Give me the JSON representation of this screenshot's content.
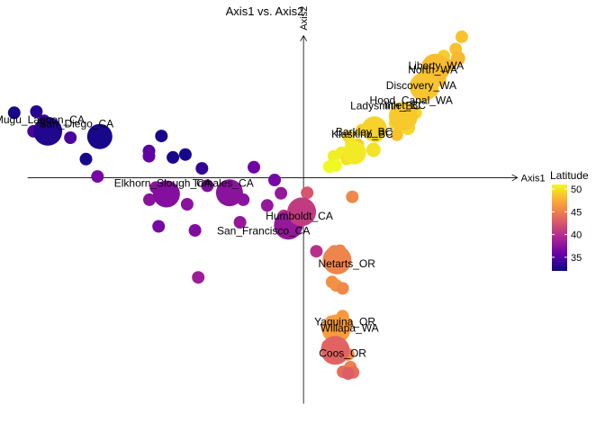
{
  "chart_data": {
    "type": "scatter",
    "title": "Axis1 vs. Axis2",
    "xlabel": "Axis1",
    "ylabel": "Axis2",
    "xlim": [
      -6.6,
      4.95
    ],
    "ylim": [
      -4.0,
      2.6
    ],
    "grid": false,
    "color_scale": {
      "title": "Latitude",
      "range": [
        32,
        51
      ],
      "ticks": [
        35,
        40,
        45,
        50
      ],
      "stops": [
        "#0d0887",
        "#6a00a8",
        "#b12a90",
        "#e16462",
        "#fca636",
        "#f0f921"
      ]
    },
    "points": [
      {
        "x": 3.44,
        "y": 2.43,
        "lat": 48.5,
        "r": 7
      },
      {
        "x": 3.31,
        "y": 2.22,
        "lat": 48.5,
        "r": 7
      },
      {
        "x": 3.36,
        "y": 2.06,
        "lat": 48.0,
        "r": 8
      },
      {
        "x": 3.05,
        "y": 2.1,
        "lat": 49.0,
        "r": 7
      },
      {
        "x": 3.15,
        "y": 1.94,
        "lat": 48.0,
        "r": 7
      },
      {
        "x": 2.97,
        "y": 1.68,
        "lat": 48.5,
        "r": 7
      },
      {
        "x": 2.78,
        "y": 1.51,
        "lat": 48.5,
        "r": 8
      },
      {
        "x": 2.44,
        "y": 1.12,
        "lat": 49.5,
        "r": 7
      },
      {
        "x": 2.27,
        "y": 0.86,
        "lat": 49.5,
        "r": 8
      },
      {
        "x": 2.1,
        "y": 0.89,
        "lat": 49.0,
        "r": 7
      },
      {
        "x": 1.99,
        "y": 0.94,
        "lat": 49.5,
        "r": 7
      },
      {
        "x": 2.03,
        "y": 0.74,
        "lat": 48.5,
        "r": 7
      },
      {
        "x": 1.66,
        "y": 0.87,
        "lat": 50.0,
        "r": 7
      },
      {
        "x": 1.58,
        "y": 0.71,
        "lat": 50.5,
        "r": 7
      },
      {
        "x": 1.27,
        "y": 0.82,
        "lat": 49.0,
        "r": 7
      },
      {
        "x": 1.52,
        "y": 0.48,
        "lat": 50.0,
        "r": 8
      },
      {
        "x": 1.18,
        "y": 0.57,
        "lat": 49.0,
        "r": 7
      },
      {
        "x": 0.98,
        "y": 0.71,
        "lat": 49.5,
        "r": 7
      },
      {
        "x": 1.04,
        "y": 0.57,
        "lat": 50.0,
        "r": 7
      },
      {
        "x": 0.83,
        "y": 0.43,
        "lat": 50.5,
        "r": 7
      },
      {
        "x": 0.66,
        "y": 0.37,
        "lat": 50.5,
        "r": 7
      },
      {
        "x": 0.94,
        "y": 0.32,
        "lat": 50.0,
        "r": 7
      },
      {
        "x": 0.7,
        "y": 0.21,
        "lat": 51.0,
        "r": 7
      },
      {
        "x": 0.56,
        "y": 0.19,
        "lat": 51.0,
        "r": 7
      },
      {
        "x": 2.87,
        "y": 1.89,
        "lat": 48.2,
        "r": 16
      },
      {
        "x": 2.62,
        "y": 1.57,
        "lat": 48.6,
        "r": 16
      },
      {
        "x": 2.17,
        "y": 1.06,
        "lat": 48.8,
        "r": 16
      },
      {
        "x": 1.54,
        "y": 0.84,
        "lat": 49.2,
        "r": 14
      },
      {
        "x": 1.11,
        "y": 0.43,
        "lat": 50.3,
        "r": 13
      },
      {
        "x": -6.29,
        "y": 1.12,
        "lat": 32.5,
        "r": 7
      },
      {
        "x": -5.81,
        "y": 1.14,
        "lat": 33.0,
        "r": 7
      },
      {
        "x": -5.64,
        "y": 0.98,
        "lat": 34.0,
        "r": 7
      },
      {
        "x": -5.47,
        "y": 0.87,
        "lat": 34.5,
        "r": 7
      },
      {
        "x": -5.87,
        "y": 0.8,
        "lat": 34.5,
        "r": 7
      },
      {
        "x": -5.07,
        "y": 0.69,
        "lat": 34.5,
        "r": 7
      },
      {
        "x": -4.37,
        "y": 0.69,
        "lat": 32.5,
        "r": 7
      },
      {
        "x": -4.73,
        "y": 0.32,
        "lat": 32.5,
        "r": 7
      },
      {
        "x": -3.09,
        "y": 0.72,
        "lat": 32.5,
        "r": 7
      },
      {
        "x": -3.36,
        "y": 0.46,
        "lat": 35.0,
        "r": 7
      },
      {
        "x": -3.36,
        "y": 0.37,
        "lat": 35.5,
        "r": 7
      },
      {
        "x": -2.84,
        "y": 0.35,
        "lat": 32.5,
        "r": 7
      },
      {
        "x": -2.57,
        "y": 0.4,
        "lat": 32.5,
        "r": 7
      },
      {
        "x": -2.21,
        "y": 0.16,
        "lat": 33.5,
        "r": 7
      },
      {
        "x": -1.08,
        "y": 0.18,
        "lat": 36.0,
        "r": 7
      },
      {
        "x": -4.48,
        "y": 0.02,
        "lat": 36.5,
        "r": 7
      },
      {
        "x": -3.21,
        "y": -0.17,
        "lat": 37.5,
        "r": 7
      },
      {
        "x": -3.35,
        "y": -0.38,
        "lat": 37.5,
        "r": 7
      },
      {
        "x": -2.53,
        "y": -0.46,
        "lat": 37.5,
        "r": 7
      },
      {
        "x": -2.09,
        "y": -0.14,
        "lat": 37.0,
        "r": 7
      },
      {
        "x": -0.63,
        "y": -0.04,
        "lat": 36.5,
        "r": 7
      },
      {
        "x": -1.31,
        "y": -0.38,
        "lat": 37.5,
        "r": 7
      },
      {
        "x": -0.49,
        "y": -0.27,
        "lat": 38.0,
        "r": 7
      },
      {
        "x": -0.79,
        "y": -0.48,
        "lat": 38.0,
        "r": 7
      },
      {
        "x": -3.15,
        "y": -0.84,
        "lat": 36.5,
        "r": 7
      },
      {
        "x": -2.36,
        "y": -0.91,
        "lat": 37.0,
        "r": 7
      },
      {
        "x": -1.38,
        "y": -0.77,
        "lat": 38.0,
        "r": 7
      },
      {
        "x": -2.29,
        "y": -1.72,
        "lat": 38.5,
        "r": 7
      },
      {
        "x": 0.08,
        "y": -0.26,
        "lat": 42.5,
        "r": 7
      },
      {
        "x": 0.28,
        "y": -1.27,
        "lat": 40.0,
        "r": 7
      },
      {
        "x": -5.56,
        "y": 0.8,
        "lat": 32.8,
        "r": 16
      },
      {
        "x": -4.43,
        "y": 0.71,
        "lat": 32.5,
        "r": 14
      },
      {
        "x": -2.98,
        "y": -0.28,
        "lat": 37.2,
        "r": 15
      },
      {
        "x": -1.61,
        "y": -0.26,
        "lat": 37.5,
        "r": 15
      },
      {
        "x": -0.33,
        "y": -0.82,
        "lat": 38.0,
        "r": 16
      },
      {
        "x": -0.43,
        "y": -0.66,
        "lat": 40.5,
        "r": 7
      },
      {
        "x": -0.04,
        "y": -0.59,
        "lat": 40.8,
        "r": 16
      },
      {
        "x": 1.06,
        "y": -0.33,
        "lat": 45.5,
        "r": 7
      },
      {
        "x": 0.67,
        "y": -1.27,
        "lat": 45.0,
        "r": 7
      },
      {
        "x": 0.79,
        "y": -1.26,
        "lat": 45.0,
        "r": 7
      },
      {
        "x": 0.73,
        "y": -1.42,
        "lat": 45.3,
        "r": 16
      },
      {
        "x": 0.62,
        "y": -1.8,
        "lat": 46.0,
        "r": 7
      },
      {
        "x": 0.71,
        "y": -1.86,
        "lat": 46.0,
        "r": 7
      },
      {
        "x": 0.85,
        "y": -1.91,
        "lat": 45.5,
        "r": 7
      },
      {
        "x": 0.85,
        "y": -2.39,
        "lat": 46.5,
        "r": 7
      },
      {
        "x": 0.6,
        "y": -2.49,
        "lat": 44.5,
        "r": 7
      },
      {
        "x": 0.94,
        "y": -2.52,
        "lat": 46.5,
        "r": 7
      },
      {
        "x": 0.69,
        "y": -2.79,
        "lat": 44.5,
        "r": 7
      },
      {
        "x": 0.53,
        "y": -2.9,
        "lat": 44.0,
        "r": 7
      },
      {
        "x": 0.71,
        "y": -2.61,
        "lat": 46.6,
        "r": 16
      },
      {
        "x": 0.69,
        "y": -2.98,
        "lat": 43.4,
        "r": 16
      },
      {
        "x": 0.97,
        "y": -3.05,
        "lat": 45.5,
        "r": 7
      },
      {
        "x": 1.02,
        "y": -3.27,
        "lat": 45.0,
        "r": 7
      },
      {
        "x": 0.86,
        "y": -3.35,
        "lat": 44.0,
        "r": 7
      },
      {
        "x": 1.08,
        "y": -3.36,
        "lat": 44.0,
        "r": 7
      },
      {
        "x": 0.97,
        "y": -3.38,
        "lat": 43.0,
        "r": 7
      }
    ],
    "labels": [
      {
        "text": "Liberty_WA",
        "x": 2.88,
        "y": 1.92
      },
      {
        "text": "North_WA",
        "x": 2.81,
        "y": 1.85
      },
      {
        "text": "Discovery_WA",
        "x": 2.56,
        "y": 1.58
      },
      {
        "text": "Hood_Canal_WA",
        "x": 2.34,
        "y": 1.32
      },
      {
        "text": "Ladysmith_BC",
        "x": 1.78,
        "y": 1.23
      },
      {
        "text": "Inlet_BC",
        "x": 2.21,
        "y": 1.24
      },
      {
        "text": "Barkley_BC",
        "x": 1.32,
        "y": 0.78
      },
      {
        "text": "Klaskino_BC",
        "x": 1.28,
        "y": 0.74
      },
      {
        "text": "Mugu_Lagoon_CA",
        "x": -5.74,
        "y": 0.99
      },
      {
        "text": "San_Diego_CA",
        "x": -4.94,
        "y": 0.92
      },
      {
        "text": "Elkhorn_Slough_CA",
        "x": -3.06,
        "y": -0.11
      },
      {
        "text": "Tomales_CA",
        "x": -1.75,
        "y": -0.11
      },
      {
        "text": "Humboldt_CA",
        "x": -0.09,
        "y": -0.67
      },
      {
        "text": "San_Francisco_CA",
        "x": -0.87,
        "y": -0.93
      },
      {
        "text": "Netarts_OR",
        "x": 0.94,
        "y": -1.5
      },
      {
        "text": "Yaquina_OR",
        "x": 0.9,
        "y": -2.5
      },
      {
        "text": "Willapa_WA",
        "x": 1.0,
        "y": -2.61
      },
      {
        "text": "Coos_OR",
        "x": 0.85,
        "y": -3.04
      }
    ]
  }
}
